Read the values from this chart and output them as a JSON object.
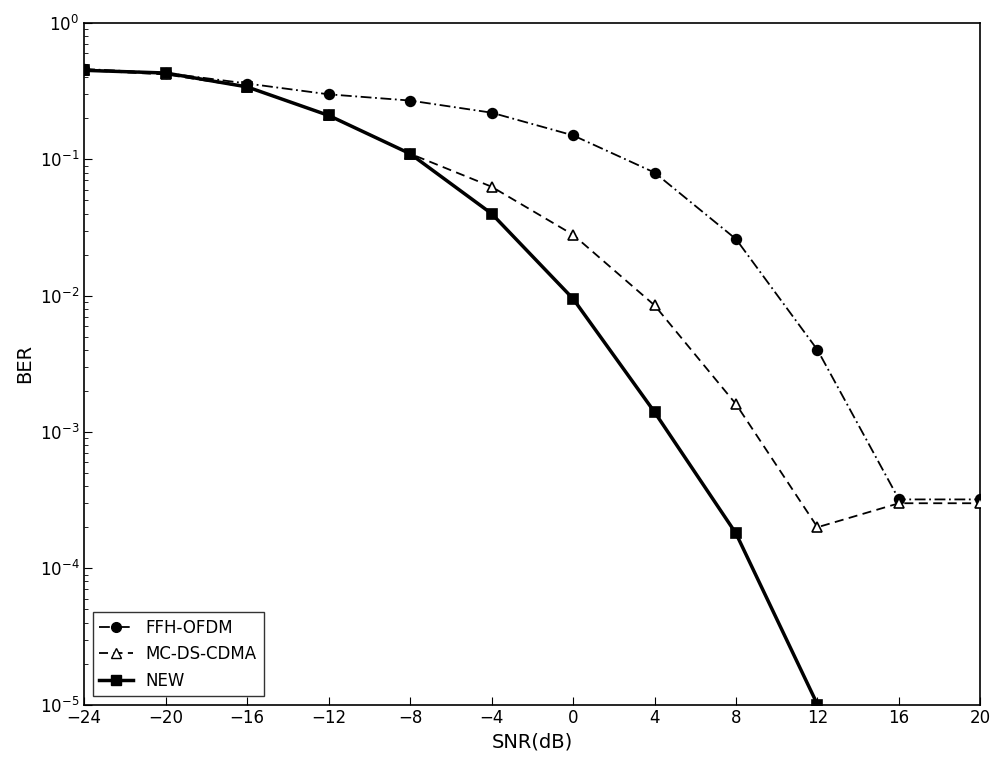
{
  "title": "",
  "xlabel": "SNR(dB)",
  "ylabel": "BER",
  "xlim": [
    -24,
    20
  ],
  "ylim_log": [
    -5,
    0
  ],
  "xticks": [
    -24,
    -20,
    -16,
    -12,
    -8,
    -4,
    0,
    4,
    8,
    12,
    16,
    20
  ],
  "ffh_ofdm": {
    "snr": [
      -24,
      -20,
      -16,
      -12,
      -8,
      -4,
      0,
      4,
      8,
      12,
      16,
      20
    ],
    "ber": [
      0.46,
      0.43,
      0.36,
      0.3,
      0.27,
      0.22,
      0.15,
      0.08,
      0.026,
      0.004,
      0.00032,
      0.00032
    ],
    "label": "FFH-OFDM",
    "color": "#000000",
    "linestyle": "-.",
    "marker": "o",
    "linewidth": 1.3,
    "markersize": 7
  },
  "mc_ds_cdma": {
    "snr": [
      -24,
      -20,
      -16,
      -12,
      -8,
      -4,
      0,
      4,
      8,
      12,
      16,
      20
    ],
    "ber": [
      0.45,
      0.42,
      0.34,
      0.21,
      0.11,
      0.063,
      0.028,
      0.0085,
      0.0016,
      0.0002,
      0.0003,
      0.0003
    ],
    "label": "MC-DS-CDMA",
    "color": "#000000",
    "linestyle": "--",
    "marker": "^",
    "linewidth": 1.3,
    "markersize": 7
  },
  "new": {
    "snr": [
      -24,
      -20,
      -16,
      -12,
      -8,
      -4,
      0,
      4,
      8,
      12
    ],
    "ber": [
      0.45,
      0.43,
      0.34,
      0.21,
      0.11,
      0.04,
      0.0095,
      0.0014,
      0.00018,
      1e-05
    ],
    "label": "NEW",
    "color": "#000000",
    "linestyle": "-",
    "marker": "s",
    "linewidth": 2.5,
    "markersize": 7
  },
  "background_color": "#ffffff",
  "legend_loc": "lower left",
  "legend_fontsize": 12
}
